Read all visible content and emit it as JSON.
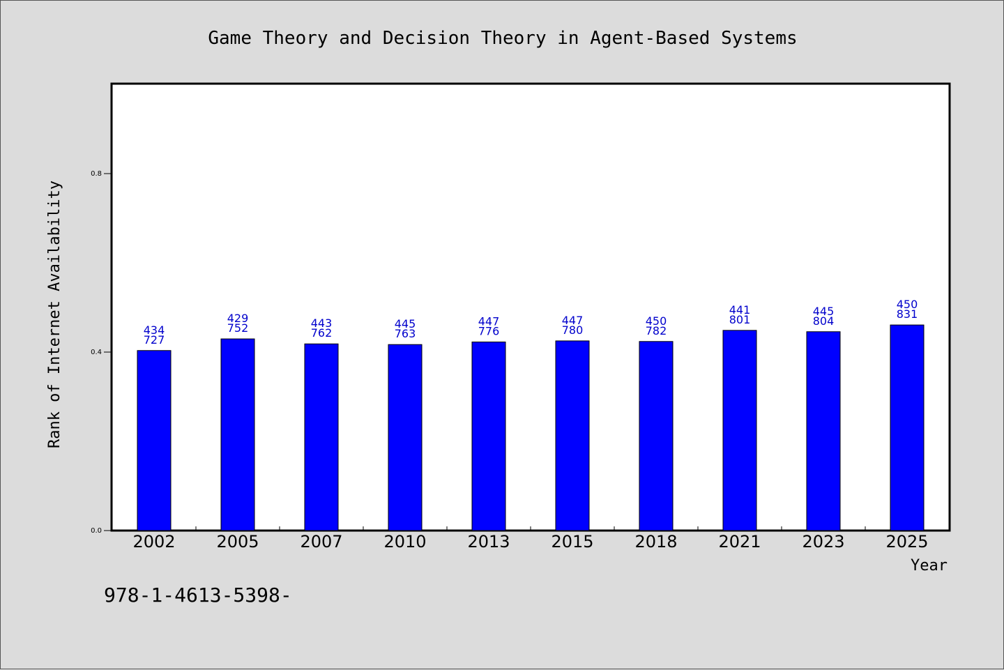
{
  "chart_data": {
    "type": "bar",
    "title": "Game Theory and Decision Theory in Agent-Based Systems",
    "xlabel": "Year",
    "ylabel": "Rank of Internet Availability",
    "categories": [
      "2002",
      "2005",
      "2007",
      "2010",
      "2013",
      "2015",
      "2018",
      "2021",
      "2023",
      "2025"
    ],
    "values": [
      0.4034727,
      0.4295752,
      0.4183762,
      0.4168763,
      0.4226776,
      0.425078,
      0.4237782,
      0.4486801,
      0.4456804,
      0.4607831
    ],
    "data_labels": [
      [
        "434",
        "727"
      ],
      [
        "429",
        "752"
      ],
      [
        "443",
        "762"
      ],
      [
        "445",
        "763"
      ],
      [
        "447",
        "776"
      ],
      [
        "447",
        "780"
      ],
      [
        "450",
        "782"
      ],
      [
        "441",
        "801"
      ],
      [
        "445",
        "804"
      ],
      [
        "450",
        "831"
      ]
    ],
    "yticks": [
      "0.0",
      "0.4",
      "0.8"
    ],
    "ylim": [
      0,
      1.0
    ],
    "bar_color": "#0000ff",
    "label_color": "#0000cc",
    "grid": false,
    "legend": false
  },
  "footnote": "978-1-4613-5398-"
}
